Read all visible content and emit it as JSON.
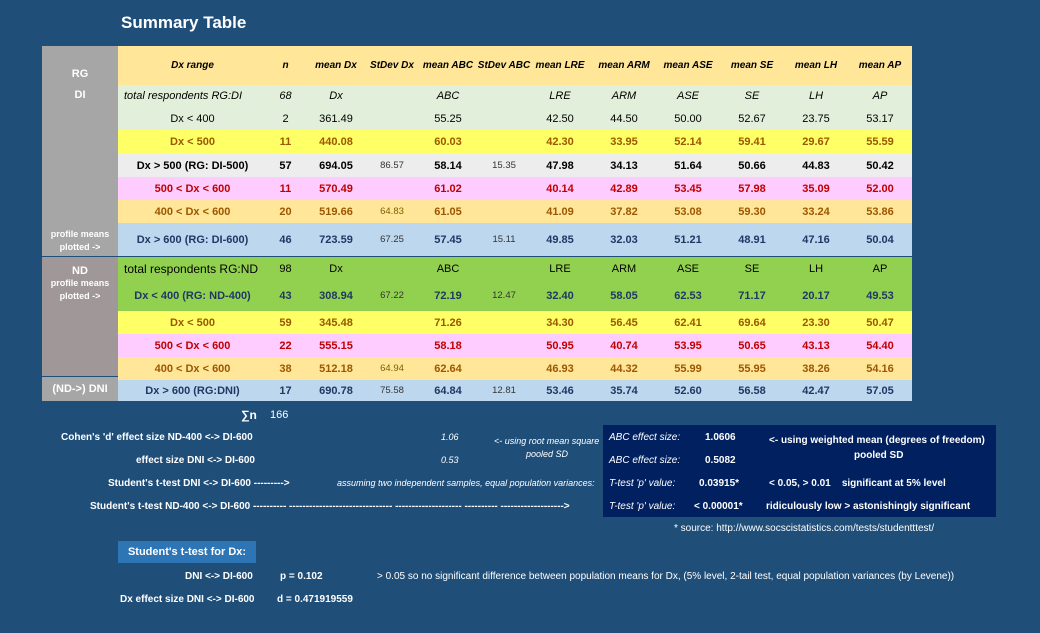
{
  "title": "Summary Table",
  "side": {
    "rg": "RG",
    "di": "DI",
    "profile1a": "profile means",
    "profile1b": "plotted ->",
    "nd": "ND",
    "profile2a": "profile means",
    "profile2b": "plotted ->",
    "dni": "(ND->) DNI"
  },
  "headers": [
    "Dx range",
    "n",
    "mean Dx",
    "StDev Dx",
    "mean ABC",
    "StDev ABC",
    "mean LRE",
    "mean ARM",
    "mean ASE",
    "mean SE",
    "mean LH",
    "mean AP"
  ],
  "rows": [
    {
      "bg": "#e2efda",
      "cls": "it",
      "cells": [
        "total respondents RG:DI",
        "68",
        "Dx",
        "",
        "ABC",
        "",
        "LRE",
        "ARM",
        "ASE",
        "SE",
        "LH",
        "AP"
      ]
    },
    {
      "bg": "#e2efda",
      "cls": "",
      "cells": [
        "Dx < 400",
        "2",
        "361.49",
        "",
        "55.25",
        "",
        "42.50",
        "44.50",
        "50.00",
        "52.67",
        "23.75",
        "53.17"
      ]
    },
    {
      "bg": "#ffff66",
      "cls": "brown",
      "cells": [
        "Dx < 500",
        "11",
        "440.08",
        "",
        "60.03",
        "",
        "42.30",
        "33.95",
        "52.14",
        "59.41",
        "29.67",
        "55.59"
      ]
    },
    {
      "bg": "#ededed",
      "cls": "bold",
      "cells": [
        "Dx > 500 (RG: DI-500)",
        "57",
        "694.05",
        "86.57",
        "58.14",
        "15.35",
        "47.98",
        "34.13",
        "51.64",
        "50.66",
        "44.83",
        "50.42"
      ]
    },
    {
      "bg": "#ffccff",
      "cls": "red",
      "cells": [
        "500 < Dx < 600",
        "11",
        "570.49",
        "",
        "61.02",
        "",
        "40.14",
        "42.89",
        "53.45",
        "57.98",
        "35.09",
        "52.00"
      ]
    },
    {
      "bg": "#ffe699",
      "cls": "brown",
      "cells": [
        "400 < Dx < 600",
        "20",
        "519.66",
        "64.83",
        "61.05",
        "",
        "41.09",
        "37.82",
        "53.08",
        "59.30",
        "33.24",
        "53.86"
      ]
    },
    {
      "bg": "#bdd7ee",
      "cls": "navy",
      "cells": [
        "Dx > 600 (RG: DI-600)",
        "46",
        "723.59",
        "67.25",
        "57.45",
        "15.11",
        "49.85",
        "32.03",
        "51.21",
        "48.91",
        "47.16",
        "50.04"
      ]
    },
    {
      "bg": "#92d050",
      "cls": "",
      "cells": [
        "total respondents RG:ND",
        "98",
        "Dx",
        "",
        "ABC",
        "",
        "LRE",
        "ARM",
        "ASE",
        "SE",
        "LH",
        "AP"
      ]
    },
    {
      "bg": "#92d050",
      "cls": "navy",
      "cells": [
        "Dx < 400 (RG: ND-400)",
        "43",
        "308.94",
        "67.22",
        "72.19",
        "12.47",
        "32.40",
        "58.05",
        "62.53",
        "71.17",
        "20.17",
        "49.53"
      ]
    },
    {
      "bg": "#ffff66",
      "cls": "brown",
      "cells": [
        "Dx < 500",
        "59",
        "345.48",
        "",
        "71.26",
        "",
        "34.30",
        "56.45",
        "62.41",
        "69.64",
        "23.30",
        "50.47"
      ]
    },
    {
      "bg": "#ffccff",
      "cls": "red",
      "cells": [
        "500 < Dx < 600",
        "22",
        "555.15",
        "",
        "58.18",
        "",
        "50.95",
        "40.74",
        "53.95",
        "50.65",
        "43.13",
        "54.40"
      ]
    },
    {
      "bg": "#ffe699",
      "cls": "brown",
      "cells": [
        "400 < Dx < 600",
        "38",
        "512.18",
        "64.94",
        "62.64",
        "",
        "46.93",
        "44.32",
        "55.99",
        "55.95",
        "38.26",
        "54.16"
      ]
    },
    {
      "bg": "#bdd7ee",
      "cls": "navy",
      "cells": [
        "Dx > 600 (RG:DNI)",
        "17",
        "690.78",
        "75.58",
        "64.84",
        "12.81",
        "53.46",
        "35.74",
        "52.60",
        "56.58",
        "42.47",
        "57.05"
      ]
    }
  ],
  "sum_n": {
    "label": "∑n",
    "value": "166"
  },
  "stats": {
    "cohen_label": "Cohen's 'd' effect size ND-400 <-> DI-600",
    "cohen_value": "1.06",
    "cohen_note1": "<- using root mean square",
    "cohen_note2": "pooled SD",
    "effect_label": "effect size DNI <-> DI-600",
    "effect_value": "0.53",
    "ttest1_label": "Student's t-test DNI <-> DI-600 --------->",
    "ttest1_note": "assuming two independent samples, equal population variances:",
    "ttest2_label": "Student's t-test ND-400 <-> DI-600 ---------- -------------------------------  --------------------  ----------  ------------------->"
  },
  "box": {
    "abc_label": "ABC effect size:",
    "abc_value": "1.0606",
    "abc_note1": "<- using weighted mean (degrees of freedom)",
    "abc_note2": "pooled SD",
    "abc2_label": "ABC effect size:",
    "abc2_value": "0.5082",
    "t1_label": "T-test 'p' value:",
    "t1_value": "0.03915*",
    "t1_note": "< 0.05, > 0.01    significant at 5% level",
    "t2_label": "T-test 'p' value:",
    "t2_value": "< 0.00001*",
    "t2_note": "ridiculously low  > astonishingly significant"
  },
  "source": "*  source: http://www.socscistatistics.com/tests/studentttest/",
  "dx_test": {
    "button": "Student's t-test for Dx:",
    "l1": "DNI <-> DI-600",
    "p": "p =  0.102",
    "note": ">  0.05 so no significant difference between population means for Dx, (5% level, 2-tail test, equal population variances (by Levene))",
    "l2": "Dx effect size DNI <-> DI-600",
    "d": "d =   0.471919559"
  }
}
